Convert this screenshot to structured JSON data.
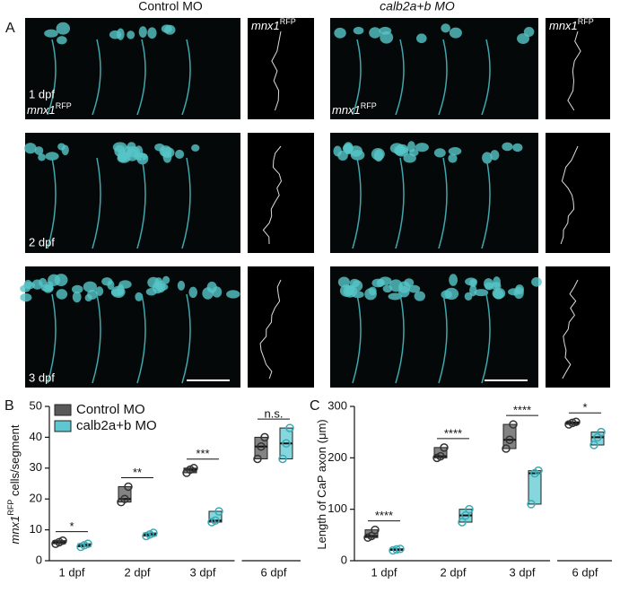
{
  "panel_a": {
    "letter": "A",
    "columns": [
      "Control MO",
      "calb2a+b MO"
    ],
    "trace_label": {
      "gene": "mnx1",
      "tag": "RFP"
    },
    "image_label": {
      "gene": "mnx1",
      "tag": "RFP"
    },
    "rows": [
      "1 dpf",
      "2 dpf",
      "3 dpf"
    ]
  },
  "chart_data": [
    {
      "type": "box",
      "letter": "B",
      "ylabel": {
        "gene": "mnx1",
        "tag": "RFP",
        "text": " cells/segment"
      },
      "categories": [
        "1 dpf",
        "2 dpf",
        "3 dpf",
        "6 dpf"
      ],
      "series": [
        {
          "name": "Control MO",
          "color": "#595959",
          "values": [
            [
              5.5,
              6,
              6.5
            ],
            [
              19,
              20,
              24
            ],
            [
              28.5,
              29.5,
              30
            ],
            [
              33,
              37,
              40
            ]
          ]
        },
        {
          "name": "calb2a+b MO",
          "color": "#5ec8d2",
          "values": [
            [
              4.5,
              5,
              5.5
            ],
            [
              8,
              8.5,
              9
            ],
            [
              12.5,
              13,
              16
            ],
            [
              33,
              38,
              43
            ]
          ]
        }
      ],
      "annotations": [
        "*",
        "**",
        "***",
        "n.s."
      ],
      "ylim": [
        0,
        50
      ],
      "yticks": [
        0,
        10,
        20,
        30,
        40,
        50
      ],
      "legend": "top-left"
    },
    {
      "type": "box",
      "letter": "C",
      "ylabel": {
        "text": "Length of CaP axon (μm)"
      },
      "categories": [
        "1 dpf",
        "2 dpf",
        "3 dpf",
        "6 dpf"
      ],
      "series": [
        {
          "name": "Control MO",
          "color": "#595959",
          "values": [
            [
              45,
              48,
              60
            ],
            [
              200,
              203,
              220
            ],
            [
              218,
              235,
              265
            ],
            [
              265,
              268,
              270
            ]
          ]
        },
        {
          "name": "calb2a+b MO",
          "color": "#5ec8d2",
          "values": [
            [
              20,
              22,
              23
            ],
            [
              75,
              88,
              100
            ],
            [
              110,
              170,
              175
            ],
            [
              225,
              240,
              250
            ]
          ]
        }
      ],
      "annotations": [
        "****",
        "****",
        "****",
        "*"
      ],
      "ylim": [
        0,
        300
      ],
      "yticks": [
        0,
        100,
        200,
        300
      ]
    }
  ]
}
